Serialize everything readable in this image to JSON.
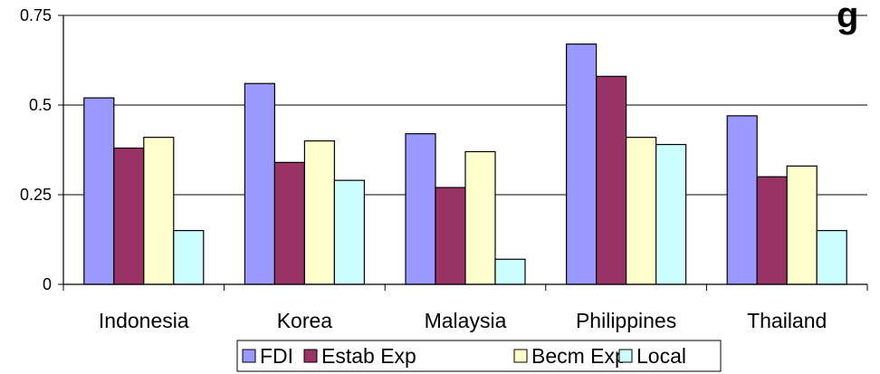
{
  "chart_data": {
    "type": "bar",
    "title_fragment": "g",
    "categories": [
      "Indonesia",
      "Korea",
      "Malaysia",
      "Philippines",
      "Thailand"
    ],
    "series": [
      {
        "name": "FDI",
        "color": "#9999ff",
        "values": [
          0.52,
          0.56,
          0.42,
          0.67,
          0.47
        ]
      },
      {
        "name": "Estab Exp",
        "color": "#993366",
        "values": [
          0.38,
          0.34,
          0.27,
          0.58,
          0.3
        ]
      },
      {
        "name": "Becm Exp",
        "color": "#ffffcc",
        "values": [
          0.41,
          0.4,
          0.37,
          0.41,
          0.33
        ]
      },
      {
        "name": "Local",
        "color": "#ccffff",
        "values": [
          0.15,
          0.29,
          0.07,
          0.39,
          0.15
        ]
      }
    ],
    "ylim": [
      0,
      0.75
    ],
    "yticks": [
      0,
      0.25,
      0.5,
      0.75
    ],
    "ytick_labels": [
      "0",
      "0.25",
      "0.5",
      "0.75"
    ],
    "grid": true,
    "legend_position": "bottom"
  }
}
